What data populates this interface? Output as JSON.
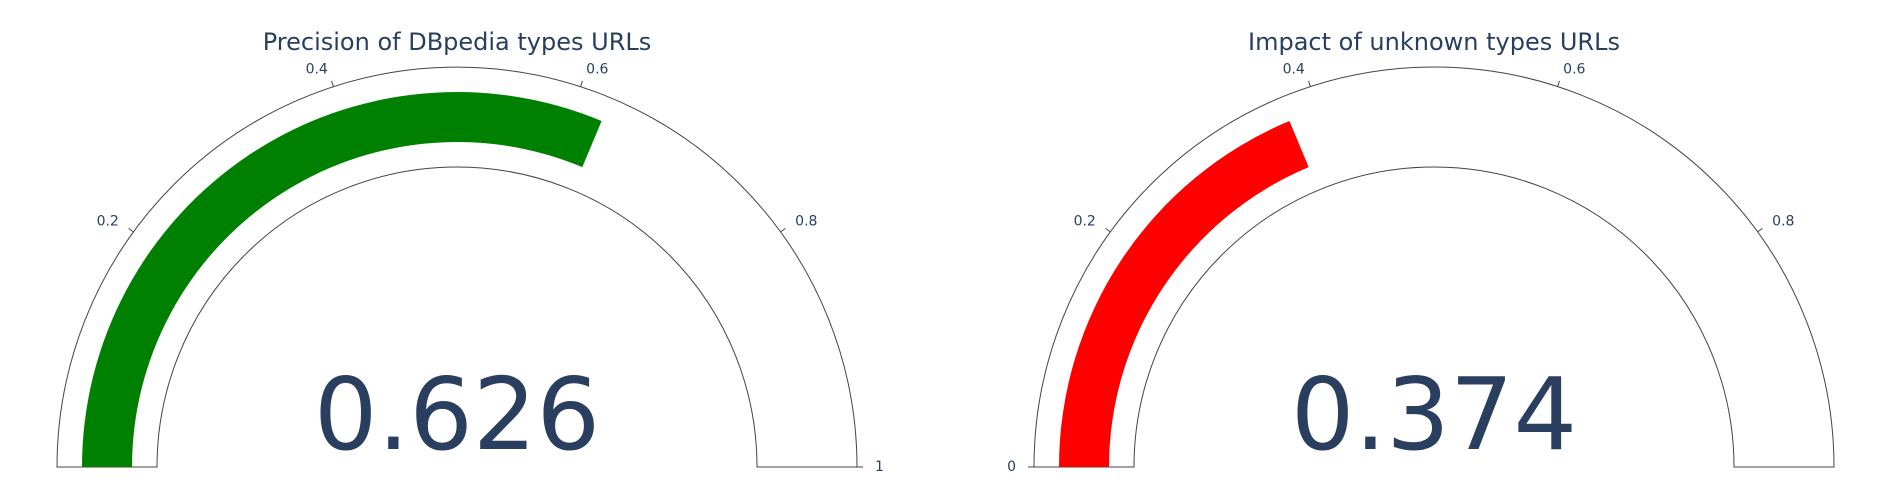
{
  "chart_data": [
    {
      "type": "gauge",
      "title": "Precision of DBpedia types URLs",
      "value": 0.626,
      "value_text": "0.626",
      "range": [
        0,
        1
      ],
      "bar_color": "#008000",
      "ticks": [
        {
          "value": 0.2,
          "label": "0.2"
        },
        {
          "value": 0.4,
          "label": "0.4"
        },
        {
          "value": 0.6,
          "label": "0.6"
        },
        {
          "value": 0.8,
          "label": "0.8"
        },
        {
          "value": 1,
          "label": "1"
        }
      ]
    },
    {
      "type": "gauge",
      "title": "Impact of unknown types URLs",
      "value": 0.374,
      "value_text": "0.374",
      "range": [
        0,
        1
      ],
      "bar_color": "#ff0000",
      "ticks": [
        {
          "value": 0,
          "label": "0"
        },
        {
          "value": 0.2,
          "label": "0.2"
        },
        {
          "value": 0.4,
          "label": "0.4"
        },
        {
          "value": 0.6,
          "label": "0.6"
        },
        {
          "value": 0.8,
          "label": "0.8"
        }
      ]
    }
  ]
}
